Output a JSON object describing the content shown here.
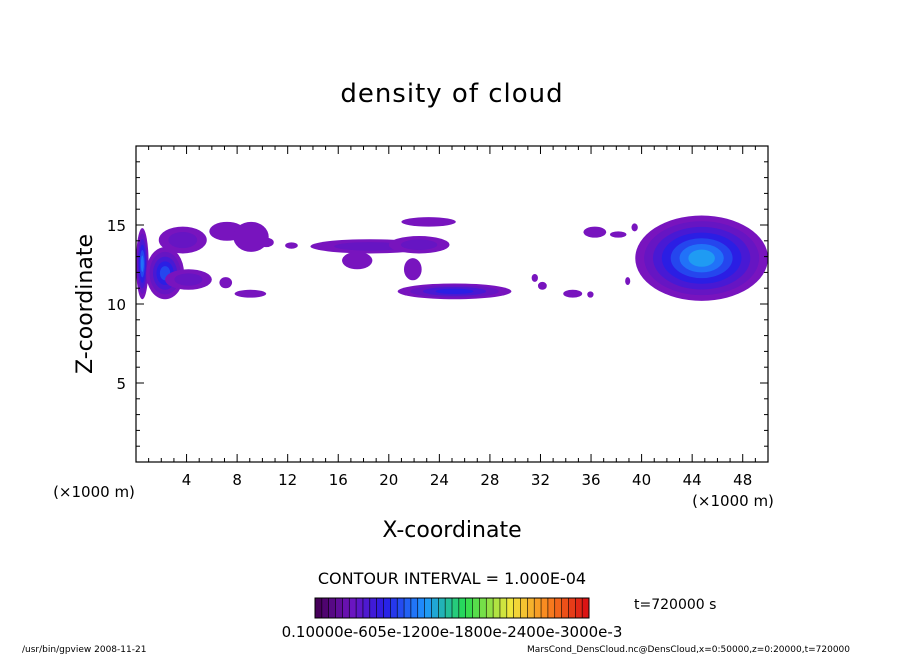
{
  "chart_data": {
    "type": "heatmap",
    "title": "density of cloud",
    "xlabel": "X-coordinate",
    "ylabel": "Z-coordinate",
    "x_unit_label_left": "(×1000 m)",
    "x_unit_label_right": "(×1000 m)",
    "xlim": [
      0,
      50
    ],
    "ylim": [
      0,
      20
    ],
    "x_ticks": [
      "4",
      "8",
      "12",
      "16",
      "20",
      "24",
      "28",
      "32",
      "36",
      "40",
      "44",
      "48"
    ],
    "y_ticks": [
      "5",
      "10",
      "15"
    ],
    "contour_interval": "CONTOUR INTERVAL = 1.000E-04",
    "time_label": "t=720000 s",
    "colorbar_labels": "0.10000e-605e-1200e-1800e-2400e-3000e-3",
    "footer_left": "/usr/bin/gpview  2008-11-21",
    "footer_right": "MarsCond_DensCloud.nc@DensCloud,x=0:50000,z=0:20000,t=720000",
    "cloud_regions": [
      {
        "x0": 0.0,
        "x1": 1.0,
        "z0": 10.3,
        "z1": 14.8,
        "peak": 0.0006
      },
      {
        "x0": 0.8,
        "x1": 3.8,
        "z0": 10.3,
        "z1": 13.6,
        "peak": 0.0005
      },
      {
        "x0": 1.8,
        "x1": 5.6,
        "z0": 13.2,
        "z1": 14.9,
        "peak": 0.0002
      },
      {
        "x0": 2.3,
        "x1": 6.0,
        "z0": 10.9,
        "z1": 12.2,
        "peak": 0.0002
      },
      {
        "x0": 5.8,
        "x1": 8.6,
        "z0": 14.0,
        "z1": 15.2,
        "peak": 0.0001
      },
      {
        "x0": 6.6,
        "x1": 7.6,
        "z0": 11.0,
        "z1": 11.7,
        "peak": 0.0001
      },
      {
        "x0": 7.7,
        "x1": 10.5,
        "z0": 13.3,
        "z1": 15.2,
        "peak": 0.0001
      },
      {
        "x0": 7.8,
        "x1": 10.3,
        "z0": 10.4,
        "z1": 10.9,
        "peak": 0.0001
      },
      {
        "x0": 9.7,
        "x1": 10.9,
        "z0": 13.6,
        "z1": 14.2,
        "peak": 0.0001
      },
      {
        "x0": 11.8,
        "x1": 12.8,
        "z0": 13.5,
        "z1": 13.9,
        "peak": 0.0001
      },
      {
        "x0": 13.8,
        "x1": 23.2,
        "z0": 13.2,
        "z1": 14.1,
        "peak": 0.0002
      },
      {
        "x0": 16.3,
        "x1": 18.7,
        "z0": 12.2,
        "z1": 13.3,
        "peak": 0.0001
      },
      {
        "x0": 20.0,
        "x1": 24.8,
        "z0": 13.2,
        "z1": 14.3,
        "peak": 0.0002
      },
      {
        "x0": 21.0,
        "x1": 25.3,
        "z0": 14.9,
        "z1": 15.5,
        "peak": 0.0001
      },
      {
        "x0": 21.2,
        "x1": 22.6,
        "z0": 11.5,
        "z1": 12.9,
        "peak": 0.0001
      },
      {
        "x0": 20.7,
        "x1": 29.7,
        "z0": 10.3,
        "z1": 11.3,
        "peak": 0.0004
      },
      {
        "x0": 31.3,
        "x1": 31.8,
        "z0": 11.4,
        "z1": 11.9,
        "peak": 0.0001
      },
      {
        "x0": 31.8,
        "x1": 32.5,
        "z0": 10.9,
        "z1": 11.4,
        "peak": 0.0001
      },
      {
        "x0": 33.8,
        "x1": 35.3,
        "z0": 10.4,
        "z1": 10.9,
        "peak": 0.0001
      },
      {
        "x0": 35.7,
        "x1": 36.2,
        "z0": 10.4,
        "z1": 10.8,
        "peak": 0.0001
      },
      {
        "x0": 35.4,
        "x1": 37.2,
        "z0": 14.2,
        "z1": 14.9,
        "peak": 0.0001
      },
      {
        "x0": 37.5,
        "x1": 38.8,
        "z0": 14.2,
        "z1": 14.6,
        "peak": 0.0001
      },
      {
        "x0": 39.2,
        "x1": 39.7,
        "z0": 14.6,
        "z1": 15.1,
        "peak": 0.0001
      },
      {
        "x0": 38.7,
        "x1": 39.1,
        "z0": 11.2,
        "z1": 11.7,
        "peak": 0.0001
      },
      {
        "x0": 39.5,
        "x1": 50.0,
        "z0": 10.2,
        "z1": 15.6,
        "peak": 0.0007
      }
    ]
  }
}
